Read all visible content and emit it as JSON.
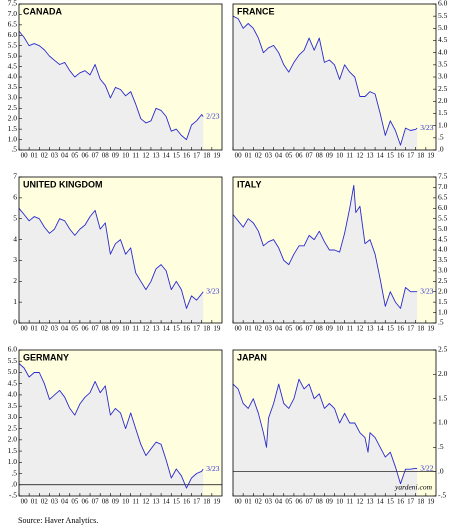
{
  "chart_data": [
    {
      "type": "line",
      "title": "CANADA",
      "annotation": "2/23",
      "color": "#2a2ad0",
      "xlim": [
        2000,
        2020
      ],
      "ylim": [
        0.5,
        7.5
      ],
      "yticks": [
        {
          "value": 0.5,
          "label": ".5"
        },
        {
          "value": 1,
          "label": "1.0"
        },
        1.5,
        {
          "value": 2,
          "label": "2.0"
        },
        2.5,
        {
          "value": 3,
          "label": "3.0"
        },
        3.5,
        {
          "value": 4,
          "label": "4.0"
        },
        4.5,
        {
          "value": 5,
          "label": "5.0"
        },
        5.5,
        {
          "value": 6,
          "label": "6.0"
        },
        6.5,
        {
          "value": 7,
          "label": "7.0"
        },
        7.5
      ],
      "xticks": [
        {
          "value": 2000,
          "label": "00"
        },
        {
          "value": 2001,
          "label": "01"
        },
        {
          "value": 2002,
          "label": "02"
        },
        {
          "value": 2003,
          "label": "03"
        },
        {
          "value": 2004,
          "label": "04"
        },
        {
          "value": 2005,
          "label": "05"
        },
        {
          "value": 2006,
          "label": "06"
        },
        {
          "value": 2007,
          "label": "07"
        },
        {
          "value": 2008,
          "label": "08"
        },
        {
          "value": 2009,
          "label": "09"
        },
        {
          "value": 2010,
          "label": "10"
        },
        {
          "value": 2011,
          "label": "11"
        },
        {
          "value": 2012,
          "label": "12"
        },
        {
          "value": 2013,
          "label": "13"
        },
        {
          "value": 2014,
          "label": "14"
        },
        {
          "value": 2015,
          "label": "15"
        },
        {
          "value": 2016,
          "label": "16"
        },
        {
          "value": 2017,
          "label": "17"
        },
        {
          "value": 2018,
          "label": "18"
        },
        {
          "value": 2019,
          "label": "19"
        }
      ],
      "x": [
        2000,
        2000.5,
        2001,
        2001.5,
        2002,
        2002.5,
        2003,
        2003.5,
        2004,
        2004.5,
        2005,
        2005.5,
        2006,
        2006.5,
        2007,
        2007.5,
        2008,
        2008.5,
        2009,
        2009.5,
        2010,
        2010.5,
        2011,
        2011.5,
        2012,
        2012.5,
        2013,
        2013.5,
        2014,
        2014.5,
        2015,
        2015.5,
        2016,
        2016.5,
        2017,
        2017.5,
        2018,
        2018.15
      ],
      "values": [
        6.2,
        5.9,
        5.5,
        5.6,
        5.5,
        5.3,
        5.0,
        4.8,
        4.6,
        4.7,
        4.3,
        4.0,
        4.2,
        4.3,
        4.1,
        4.6,
        3.9,
        3.6,
        3.0,
        3.5,
        3.4,
        3.1,
        3.3,
        2.7,
        2.0,
        1.8,
        1.9,
        2.5,
        2.4,
        2.1,
        1.4,
        1.5,
        1.2,
        1.0,
        1.7,
        1.9,
        2.2,
        2.1
      ]
    },
    {
      "type": "line",
      "title": "FRANCE",
      "annotation": "3/23",
      "color": "#2a2ad0",
      "xlim": [
        2000,
        2020
      ],
      "ylim": [
        0,
        6
      ],
      "yticks": [
        {
          "value": 0,
          "label": ".0"
        },
        {
          "value": 0.5,
          "label": ".5"
        },
        {
          "value": 1,
          "label": "1.0"
        },
        1.5,
        {
          "value": 2,
          "label": "2.0"
        },
        2.5,
        {
          "value": 3,
          "label": "3.0"
        },
        3.5,
        {
          "value": 4,
          "label": "4.0"
        },
        4.5,
        {
          "value": 5,
          "label": "5.0"
        },
        5.5,
        {
          "value": 6,
          "label": "6.0"
        }
      ],
      "xticks": [
        {
          "value": 2000,
          "label": "00"
        },
        {
          "value": 2001,
          "label": "01"
        },
        {
          "value": 2002,
          "label": "02"
        },
        {
          "value": 2003,
          "label": "03"
        },
        {
          "value": 2004,
          "label": "04"
        },
        {
          "value": 2005,
          "label": "05"
        },
        {
          "value": 2006,
          "label": "06"
        },
        {
          "value": 2007,
          "label": "07"
        },
        {
          "value": 2008,
          "label": "08"
        },
        {
          "value": 2009,
          "label": "09"
        },
        {
          "value": 2010,
          "label": "10"
        },
        {
          "value": 2011,
          "label": "11"
        },
        {
          "value": 2012,
          "label": "12"
        },
        {
          "value": 2013,
          "label": "13"
        },
        {
          "value": 2014,
          "label": "14"
        },
        {
          "value": 2015,
          "label": "15"
        },
        {
          "value": 2016,
          "label": "16"
        },
        {
          "value": 2017,
          "label": "17"
        },
        {
          "value": 2018,
          "label": "18"
        },
        {
          "value": 2019,
          "label": "19"
        }
      ],
      "x": [
        2000,
        2000.5,
        2001,
        2001.5,
        2002,
        2002.5,
        2003,
        2003.5,
        2004,
        2004.5,
        2005,
        2005.5,
        2006,
        2006.5,
        2007,
        2007.5,
        2008,
        2008.5,
        2009,
        2009.5,
        2010,
        2010.5,
        2011,
        2011.5,
        2012,
        2012.5,
        2013,
        2013.5,
        2014,
        2014.5,
        2015,
        2015.5,
        2016,
        2016.5,
        2017,
        2017.5,
        2018,
        2018.15
      ],
      "values": [
        5.5,
        5.4,
        5.0,
        5.2,
        5.0,
        4.6,
        4.0,
        4.2,
        4.3,
        4.0,
        3.5,
        3.2,
        3.6,
        3.9,
        4.1,
        4.6,
        4.1,
        4.6,
        3.6,
        3.7,
        3.5,
        2.9,
        3.5,
        3.2,
        3.0,
        2.2,
        2.2,
        2.4,
        2.3,
        1.5,
        0.6,
        1.2,
        0.8,
        0.2,
        0.9,
        0.8,
        0.85,
        0.9
      ]
    },
    {
      "type": "line",
      "title": "UNITED KINGDOM",
      "annotation": "3/23",
      "color": "#2a2ad0",
      "xlim": [
        2000,
        2020
      ],
      "ylim": [
        0,
        7
      ],
      "yticks": [
        0,
        1,
        2,
        3,
        4,
        5,
        6,
        7
      ],
      "xticks": [
        {
          "value": 2000,
          "label": "00"
        },
        {
          "value": 2001,
          "label": "01"
        },
        {
          "value": 2002,
          "label": "02"
        },
        {
          "value": 2003,
          "label": "03"
        },
        {
          "value": 2004,
          "label": "04"
        },
        {
          "value": 2005,
          "label": "05"
        },
        {
          "value": 2006,
          "label": "06"
        },
        {
          "value": 2007,
          "label": "07"
        },
        {
          "value": 2008,
          "label": "08"
        },
        {
          "value": 2009,
          "label": "09"
        },
        {
          "value": 2010,
          "label": "10"
        },
        {
          "value": 2011,
          "label": "11"
        },
        {
          "value": 2012,
          "label": "12"
        },
        {
          "value": 2013,
          "label": "13"
        },
        {
          "value": 2014,
          "label": "14"
        },
        {
          "value": 2015,
          "label": "15"
        },
        {
          "value": 2016,
          "label": "16"
        },
        {
          "value": 2017,
          "label": "17"
        },
        {
          "value": 2018,
          "label": "18"
        },
        {
          "value": 2019,
          "label": "19"
        }
      ],
      "x": [
        2000,
        2000.5,
        2001,
        2001.5,
        2002,
        2002.5,
        2003,
        2003.5,
        2004,
        2004.5,
        2005,
        2005.5,
        2006,
        2006.5,
        2007,
        2007.5,
        2008,
        2008.5,
        2009,
        2009.5,
        2010,
        2010.5,
        2011,
        2011.5,
        2012,
        2012.5,
        2013,
        2013.5,
        2014,
        2014.5,
        2015,
        2015.5,
        2016,
        2016.5,
        2017,
        2017.5,
        2018,
        2018.15
      ],
      "values": [
        5.5,
        5.2,
        4.9,
        5.1,
        5.0,
        4.6,
        4.3,
        4.5,
        5.0,
        4.9,
        4.5,
        4.2,
        4.5,
        4.7,
        5.1,
        5.4,
        4.5,
        4.8,
        3.3,
        3.8,
        4.0,
        3.3,
        3.6,
        2.4,
        2.0,
        1.6,
        2.0,
        2.6,
        2.8,
        2.5,
        1.6,
        2.0,
        1.6,
        0.7,
        1.3,
        1.1,
        1.4,
        1.5
      ]
    },
    {
      "type": "line",
      "title": "ITALY",
      "annotation": "3/23",
      "color": "#2a2ad0",
      "xlim": [
        2000,
        2020
      ],
      "ylim": [
        0.5,
        7.5
      ],
      "yticks": [
        {
          "value": 0.5,
          "label": ".5"
        },
        {
          "value": 1,
          "label": "1.0"
        },
        1.5,
        {
          "value": 2,
          "label": "2.0"
        },
        2.5,
        {
          "value": 3,
          "label": "3.0"
        },
        3.5,
        {
          "value": 4,
          "label": "4.0"
        },
        4.5,
        {
          "value": 5,
          "label": "5.0"
        },
        5.5,
        {
          "value": 6,
          "label": "6.0"
        },
        6.5,
        {
          "value": 7,
          "label": "7.0"
        },
        7.5
      ],
      "xticks": [
        {
          "value": 2000,
          "label": "00"
        },
        {
          "value": 2001,
          "label": "01"
        },
        {
          "value": 2002,
          "label": "02"
        },
        {
          "value": 2003,
          "label": "03"
        },
        {
          "value": 2004,
          "label": "04"
        },
        {
          "value": 2005,
          "label": "05"
        },
        {
          "value": 2006,
          "label": "06"
        },
        {
          "value": 2007,
          "label": "07"
        },
        {
          "value": 2008,
          "label": "08"
        },
        {
          "value": 2009,
          "label": "09"
        },
        {
          "value": 2010,
          "label": "10"
        },
        {
          "value": 2011,
          "label": "11"
        },
        {
          "value": 2012,
          "label": "12"
        },
        {
          "value": 2013,
          "label": "13"
        },
        {
          "value": 2014,
          "label": "14"
        },
        {
          "value": 2015,
          "label": "15"
        },
        {
          "value": 2016,
          "label": "16"
        },
        {
          "value": 2017,
          "label": "17"
        },
        {
          "value": 2018,
          "label": "18"
        },
        {
          "value": 2019,
          "label": "19"
        }
      ],
      "x": [
        2000,
        2000.5,
        2001,
        2001.5,
        2002,
        2002.5,
        2003,
        2003.5,
        2004,
        2004.5,
        2005,
        2005.5,
        2006,
        2006.5,
        2007,
        2007.5,
        2008,
        2008.5,
        2009,
        2009.5,
        2010,
        2010.5,
        2011,
        2011.5,
        2011.9,
        2012.1,
        2012.5,
        2013,
        2013.5,
        2014,
        2014.5,
        2015,
        2015.5,
        2016,
        2016.5,
        2017,
        2017.5,
        2018,
        2018.15
      ],
      "values": [
        5.7,
        5.4,
        5.1,
        5.5,
        5.3,
        4.9,
        4.2,
        4.4,
        4.5,
        4.1,
        3.5,
        3.3,
        3.8,
        4.2,
        4.2,
        4.7,
        4.5,
        4.9,
        4.4,
        4.0,
        4.0,
        3.9,
        4.8,
        6.0,
        7.1,
        5.8,
        6.1,
        4.3,
        4.5,
        3.8,
        2.6,
        1.3,
        2.0,
        1.5,
        1.2,
        2.2,
        2.0,
        2.0,
        2.0
      ]
    },
    {
      "type": "line",
      "title": "GERMANY",
      "annotation": "3/23",
      "color": "#2a2ad0",
      "zero_line": true,
      "xlim": [
        2000,
        2020
      ],
      "ylim": [
        -0.5,
        6
      ],
      "yticks": [
        {
          "value": -0.5,
          "label": "-.5"
        },
        {
          "value": 0,
          "label": ".0"
        },
        {
          "value": 0.5,
          "label": ".5"
        },
        {
          "value": 1,
          "label": "1.0"
        },
        1.5,
        {
          "value": 2,
          "label": "2.0"
        },
        2.5,
        {
          "value": 3,
          "label": "3.0"
        },
        3.5,
        {
          "value": 4,
          "label": "4.0"
        },
        4.5,
        {
          "value": 5,
          "label": "5.0"
        },
        5.5,
        {
          "value": 6,
          "label": "6.0"
        }
      ],
      "xticks": [
        {
          "value": 2000,
          "label": "00"
        },
        {
          "value": 2001,
          "label": "01"
        },
        {
          "value": 2002,
          "label": "02"
        },
        {
          "value": 2003,
          "label": "03"
        },
        {
          "value": 2004,
          "label": "04"
        },
        {
          "value": 2005,
          "label": "05"
        },
        {
          "value": 2006,
          "label": "06"
        },
        {
          "value": 2007,
          "label": "07"
        },
        {
          "value": 2008,
          "label": "08"
        },
        {
          "value": 2009,
          "label": "09"
        },
        {
          "value": 2010,
          "label": "10"
        },
        {
          "value": 2011,
          "label": "11"
        },
        {
          "value": 2012,
          "label": "12"
        },
        {
          "value": 2013,
          "label": "13"
        },
        {
          "value": 2014,
          "label": "14"
        },
        {
          "value": 2015,
          "label": "15"
        },
        {
          "value": 2016,
          "label": "16"
        },
        {
          "value": 2017,
          "label": "17"
        },
        {
          "value": 2018,
          "label": "18"
        },
        {
          "value": 2019,
          "label": "19"
        }
      ],
      "x": [
        2000,
        2000.5,
        2001,
        2001.5,
        2002,
        2002.5,
        2003,
        2003.5,
        2004,
        2004.5,
        2005,
        2005.5,
        2006,
        2006.5,
        2007,
        2007.5,
        2008,
        2008.5,
        2009,
        2009.5,
        2010,
        2010.5,
        2011,
        2011.5,
        2012,
        2012.5,
        2013,
        2013.5,
        2014,
        2014.5,
        2015,
        2015.5,
        2016,
        2016.5,
        2017,
        2017.5,
        2018,
        2018.15
      ],
      "values": [
        5.4,
        5.2,
        4.8,
        5.0,
        5.0,
        4.5,
        3.8,
        4.0,
        4.2,
        3.9,
        3.4,
        3.1,
        3.6,
        3.9,
        4.1,
        4.6,
        4.1,
        4.4,
        3.1,
        3.4,
        3.2,
        2.5,
        3.2,
        2.5,
        1.8,
        1.3,
        1.6,
        1.9,
        1.8,
        1.1,
        0.3,
        0.7,
        0.4,
        -0.15,
        0.3,
        0.5,
        0.6,
        0.7
      ]
    },
    {
      "type": "line",
      "title": "JAPAN",
      "annotation": "3/22",
      "credit": "yardeni.com",
      "color": "#2a2ad0",
      "zero_line": true,
      "xlim": [
        2000,
        2020
      ],
      "ylim": [
        -0.5,
        2.5
      ],
      "yticks": [
        {
          "value": -0.5,
          "label": "-.5"
        },
        {
          "value": 0,
          "label": ".0"
        },
        {
          "value": 0.5,
          "label": ".5"
        },
        {
          "value": 1,
          "label": "1.0"
        },
        1.5,
        {
          "value": 2,
          "label": "2.0"
        },
        2.5
      ],
      "xticks": [
        {
          "value": 2000,
          "label": "00"
        },
        {
          "value": 2001,
          "label": "01"
        },
        {
          "value": 2002,
          "label": "02"
        },
        {
          "value": 2003,
          "label": "03"
        },
        {
          "value": 2004,
          "label": "04"
        },
        {
          "value": 2005,
          "label": "05"
        },
        {
          "value": 2006,
          "label": "06"
        },
        {
          "value": 2007,
          "label": "07"
        },
        {
          "value": 2008,
          "label": "08"
        },
        {
          "value": 2009,
          "label": "09"
        },
        {
          "value": 2010,
          "label": "10"
        },
        {
          "value": 2011,
          "label": "11"
        },
        {
          "value": 2012,
          "label": "12"
        },
        {
          "value": 2013,
          "label": "13"
        },
        {
          "value": 2014,
          "label": "14"
        },
        {
          "value": 2015,
          "label": "15"
        },
        {
          "value": 2016,
          "label": "16"
        },
        {
          "value": 2017,
          "label": "17"
        },
        {
          "value": 2018,
          "label": "18"
        },
        {
          "value": 2019,
          "label": "19"
        }
      ],
      "x": [
        2000,
        2000.5,
        2001,
        2001.5,
        2002,
        2002.5,
        2003,
        2003.3,
        2003.5,
        2004,
        2004.5,
        2005,
        2005.5,
        2006,
        2006.5,
        2007,
        2007.5,
        2008,
        2008.5,
        2009,
        2009.5,
        2010,
        2010.5,
        2011,
        2011.5,
        2012,
        2012.5,
        2013,
        2013.3,
        2013.5,
        2014,
        2014.5,
        2015,
        2015.5,
        2016,
        2016.5,
        2017,
        2017.5,
        2018,
        2018.15
      ],
      "values": [
        1.8,
        1.7,
        1.4,
        1.3,
        1.5,
        1.2,
        0.8,
        0.5,
        1.1,
        1.4,
        1.8,
        1.4,
        1.3,
        1.5,
        1.9,
        1.7,
        1.8,
        1.5,
        1.6,
        1.3,
        1.4,
        1.3,
        1.0,
        1.2,
        1.0,
        1.0,
        0.8,
        0.7,
        0.4,
        0.8,
        0.7,
        0.5,
        0.3,
        0.4,
        0.1,
        -0.25,
        0.05,
        0.05,
        0.07,
        0.06
      ]
    }
  ],
  "source": "Source: Haver Analytics."
}
